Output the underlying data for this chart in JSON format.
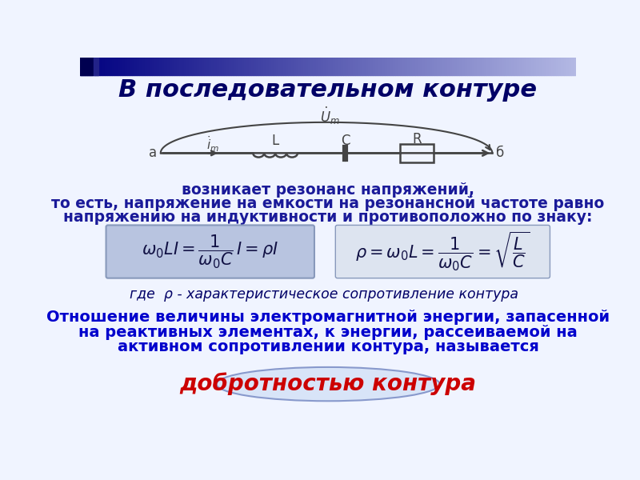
{
  "title": "В последовательном контуре",
  "bg_color": "#f0f4ff",
  "title_color": "#000066",
  "title_fontsize": 22,
  "body_text_color": "#1a1a99",
  "body_text1": "возникает резонанс напряжений,",
  "body_text2": "то есть, напряжение на емкости на резонансной частоте равно",
  "body_text3": "напряжению на индуктивности и противоположно по знаку:",
  "formula1": "$\\omega_0 LI = \\dfrac{1}{\\omega_0 C}\\, I = \\rho I$",
  "formula2": "$\\rho = \\omega_0 L = \\dfrac{1}{\\omega_0 C} = \\sqrt{\\dfrac{L}{C}}$",
  "formula_box1_color": "#b8c4e0",
  "formula_box2_color": "#dde4f0",
  "where_text": "где  ρ - характеристическое сопротивление контура",
  "bottom_text1": "Отношение величины электромагнитной энергии, запасенной",
  "bottom_text2": "на реактивных элементах, к энергии, рассеиваемой на",
  "bottom_text3": "активном сопротивлении контура, называется",
  "bottom_highlight": "добротностью контура",
  "bottom_highlight_color": "#cc0000",
  "circuit_color": "#444444",
  "header_bar_color": "#000080",
  "header_bar2_color": "#6688bb"
}
